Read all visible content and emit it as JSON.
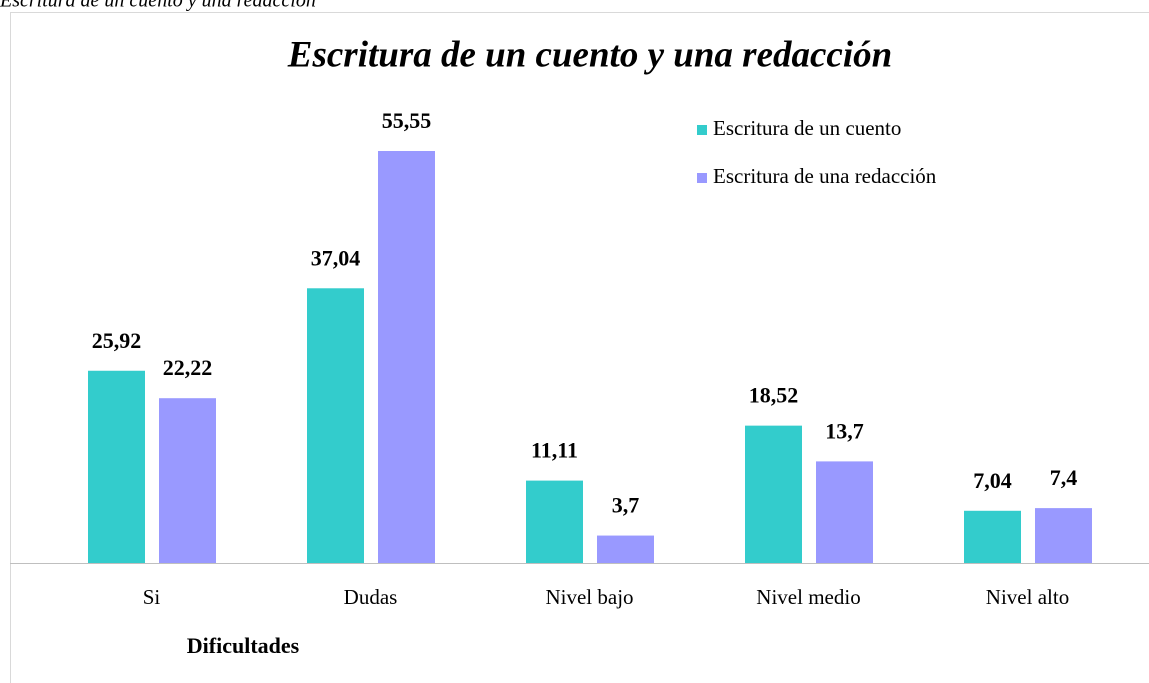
{
  "caption": "Escritura de un cuento y una redacción",
  "chart_data": {
    "type": "bar",
    "title": "Escritura de un cuento y una redacción",
    "x_label": "Dificultades",
    "categories": [
      "Si",
      "Dudas",
      "Nivel bajo",
      "Nivel medio",
      "Nivel alto"
    ],
    "series": [
      {
        "name": "Escritura de un cuento",
        "color": "#33cccc",
        "values": [
          25.92,
          37.04,
          11.11,
          18.52,
          7.04
        ],
        "value_labels": [
          "25,92",
          "37,04",
          "11,11",
          "18,52",
          "7,04"
        ]
      },
      {
        "name": "Escritura de una redacción",
        "color": "#9999ff",
        "values": [
          22.22,
          55.55,
          3.7,
          13.7,
          7.4
        ],
        "value_labels": [
          "22,22",
          "55,55",
          "3,7",
          "13,7",
          "7,4"
        ]
      }
    ],
    "legend": "upper right"
  }
}
